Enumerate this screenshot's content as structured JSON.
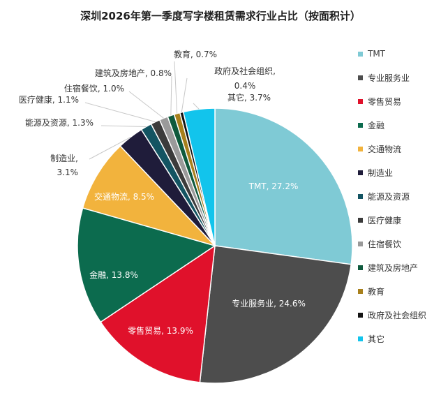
{
  "chart_data": {
    "type": "pie",
    "title": "深圳2026年第一季度写字楼租赁需求行业占比（按面积计）",
    "slices": [
      {
        "name": "TMT",
        "value": 27.2,
        "label": "TMT, 27.2%",
        "color": "#7fcad5"
      },
      {
        "name": "专业服务业",
        "value": 24.6,
        "label": "专业服务业, 24.6%",
        "color": "#4d4d4d"
      },
      {
        "name": "零售贸易",
        "value": 13.9,
        "label": "零售贸易, 13.9%",
        "color": "#e0112b"
      },
      {
        "name": "金融",
        "value": 13.8,
        "label": "金融, 13.8%",
        "color": "#0c6b4e"
      },
      {
        "name": "交通物流",
        "value": 8.5,
        "label": "交通物流, 8.5%",
        "color": "#f2b33d"
      },
      {
        "name": "制造业",
        "value": 3.1,
        "label": "制造业, 3.1%",
        "color": "#1f1c3a"
      },
      {
        "name": "能源及资源",
        "value": 1.3,
        "label": "能源及资源, 1.3%",
        "color": "#135462"
      },
      {
        "name": "医疗健康",
        "value": 1.1,
        "label": "医疗健康, 1.1%",
        "color": "#3b3b3b"
      },
      {
        "name": "住宿餐饮",
        "value": 1.0,
        "label": "住宿餐饮, 1.0%",
        "color": "#9a9a9a"
      },
      {
        "name": "建筑及房地产",
        "value": 0.8,
        "label": "建筑及房地产, 0.8%",
        "color": "#0f5a3d"
      },
      {
        "name": "教育",
        "value": 0.7,
        "label": "教育, 0.7%",
        "color": "#a8801c"
      },
      {
        "name": "政府及社会组织",
        "value": 0.4,
        "label": "政府及社会组织, 0.4%",
        "color": "#141414"
      },
      {
        "name": "其它",
        "value": 3.7,
        "label": "其它, 3.7%",
        "color": "#12c4ec"
      }
    ],
    "legend_position": "right"
  }
}
